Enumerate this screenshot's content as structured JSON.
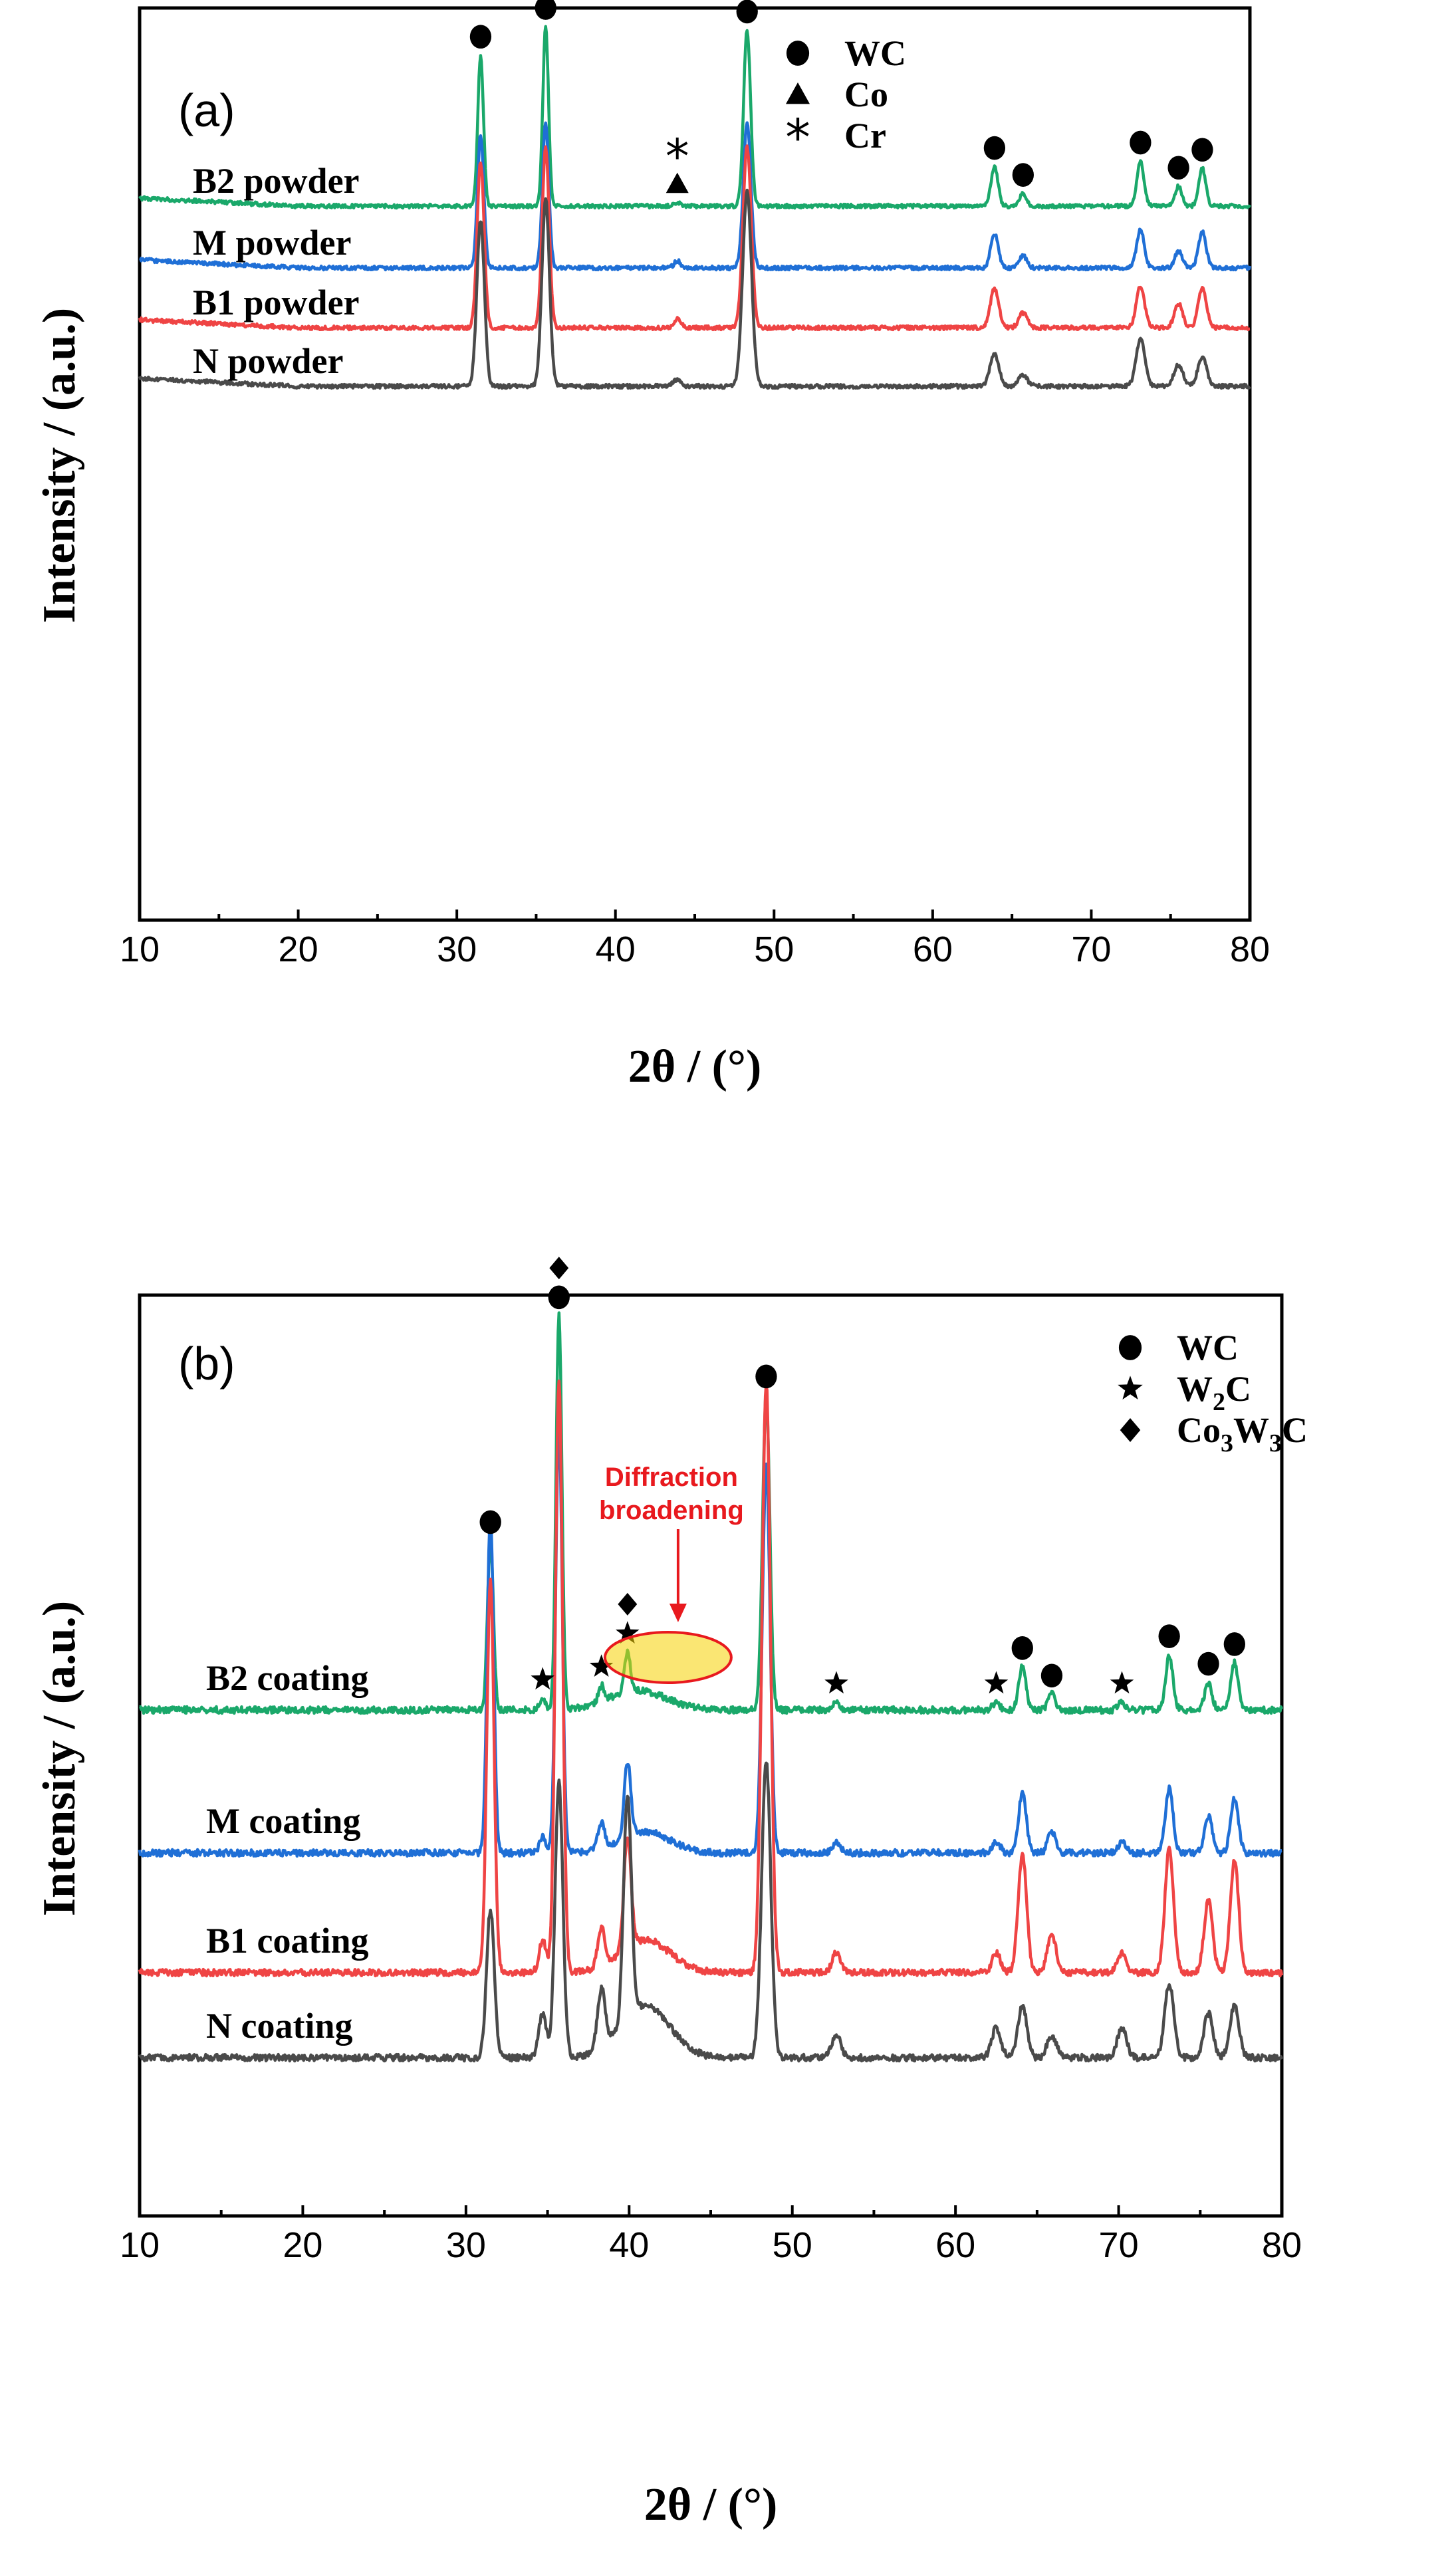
{
  "chart_data": [
    {
      "type": "line",
      "panel": "(a)",
      "xlabel": "2θ / (°)",
      "ylabel": "Intensity / (a.u.)",
      "xlim": [
        10,
        80
      ],
      "xticks": [
        10,
        20,
        30,
        40,
        50,
        60,
        70,
        80
      ],
      "legend": [
        {
          "marker": "circle-marker",
          "label": "WC"
        },
        {
          "marker": "triangle-marker",
          "label": "Co"
        },
        {
          "marker": "asterisk-marker",
          "label": "Cr"
        }
      ],
      "legend_position": "top-right",
      "series": [
        {
          "name": "B2 powder",
          "color": "#1aa86a",
          "peaks": [
            {
              "x": 31.5,
              "h": 0.84
            },
            {
              "x": 35.6,
              "h": 1.0
            },
            {
              "x": 43.9,
              "h": 0.02
            },
            {
              "x": 48.3,
              "h": 0.98
            },
            {
              "x": 63.9,
              "h": 0.22
            },
            {
              "x": 65.7,
              "h": 0.07
            },
            {
              "x": 73.1,
              "h": 0.25
            },
            {
              "x": 75.5,
              "h": 0.11
            },
            {
              "x": 77.0,
              "h": 0.21
            }
          ]
        },
        {
          "name": "M powder",
          "color": "#1f6fd6",
          "peaks": [
            {
              "x": 31.5,
              "h": 0.55
            },
            {
              "x": 35.6,
              "h": 0.6
            },
            {
              "x": 43.9,
              "h": 0.03
            },
            {
              "x": 48.3,
              "h": 0.6
            },
            {
              "x": 63.9,
              "h": 0.14
            },
            {
              "x": 65.7,
              "h": 0.05
            },
            {
              "x": 73.1,
              "h": 0.16
            },
            {
              "x": 75.5,
              "h": 0.07
            },
            {
              "x": 77.0,
              "h": 0.15
            }
          ]
        },
        {
          "name": "B1 powder",
          "color": "#ef4444",
          "peaks": [
            {
              "x": 31.5,
              "h": 0.55
            },
            {
              "x": 35.6,
              "h": 0.6
            },
            {
              "x": 43.9,
              "h": 0.03
            },
            {
              "x": 48.3,
              "h": 0.6
            },
            {
              "x": 63.9,
              "h": 0.13
            },
            {
              "x": 65.7,
              "h": 0.05
            },
            {
              "x": 73.1,
              "h": 0.14
            },
            {
              "x": 75.5,
              "h": 0.08
            },
            {
              "x": 77.0,
              "h": 0.13
            }
          ]
        },
        {
          "name": "N powder",
          "color": "#4a4a4a",
          "peaks": [
            {
              "x": 31.5,
              "h": 0.46
            },
            {
              "x": 35.6,
              "h": 0.52
            },
            {
              "x": 43.9,
              "h": 0.02
            },
            {
              "x": 48.3,
              "h": 0.54
            },
            {
              "x": 63.9,
              "h": 0.09
            },
            {
              "x": 65.7,
              "h": 0.03
            },
            {
              "x": 73.1,
              "h": 0.13
            },
            {
              "x": 75.5,
              "h": 0.06
            },
            {
              "x": 77.0,
              "h": 0.08
            }
          ]
        }
      ],
      "peak_markers": [
        {
          "x": 31.5,
          "marker": "circle-marker"
        },
        {
          "x": 35.6,
          "marker": "circle-marker"
        },
        {
          "x": 43.9,
          "marker": "triangle-marker"
        },
        {
          "x": 43.9,
          "marker": "asterisk-marker"
        },
        {
          "x": 48.3,
          "marker": "circle-marker"
        },
        {
          "x": 63.9,
          "marker": "circle-marker"
        },
        {
          "x": 65.7,
          "marker": "circle-marker"
        },
        {
          "x": 73.1,
          "marker": "circle-marker"
        },
        {
          "x": 75.5,
          "marker": "circle-marker"
        },
        {
          "x": 77.0,
          "marker": "circle-marker"
        }
      ]
    },
    {
      "type": "line",
      "panel": "(b)",
      "xlabel": "2θ / (°)",
      "ylabel": "Intensity / (a.u.)",
      "xlim": [
        10,
        80
      ],
      "xticks": [
        10,
        20,
        30,
        40,
        50,
        60,
        70,
        80
      ],
      "legend": [
        {
          "marker": "circle-marker",
          "label": "WC"
        },
        {
          "marker": "star-marker",
          "label": "W",
          "sub": "2",
          "tail": "C"
        },
        {
          "marker": "diamond-marker",
          "label": "Co",
          "sub": "3",
          "mid": "W",
          "sub2": "3",
          "tail": "C"
        }
      ],
      "legend_position": "top-right",
      "annotation": {
        "text_line1": "Diffraction",
        "text_line2": "broadening",
        "x": 43.0,
        "color": "#e8191e"
      },
      "series": [
        {
          "name": "B2 coating",
          "color": "#1aa86a",
          "peaks": [
            {
              "x": 31.5,
              "h": 0.43
            },
            {
              "x": 34.7,
              "h": 0.03
            },
            {
              "x": 35.7,
              "h": 1.0
            },
            {
              "x": 38.3,
              "h": 0.04
            },
            {
              "x": 39.9,
              "h": 0.1
            },
            {
              "x": 48.4,
              "h": 0.8
            },
            {
              "x": 52.7,
              "h": 0.02
            },
            {
              "x": 62.5,
              "h": 0.02
            },
            {
              "x": 64.1,
              "h": 0.11
            },
            {
              "x": 65.9,
              "h": 0.04
            },
            {
              "x": 70.2,
              "h": 0.02
            },
            {
              "x": 73.1,
              "h": 0.14
            },
            {
              "x": 75.5,
              "h": 0.07
            },
            {
              "x": 77.1,
              "h": 0.12
            }
          ],
          "broad": [
            {
              "x": 40.5,
              "h": 0.05,
              "w": 3.5
            }
          ]
        },
        {
          "name": "M coating",
          "color": "#1f6fd6",
          "peaks": [
            {
              "x": 31.5,
              "h": 0.63
            },
            {
              "x": 34.7,
              "h": 0.03
            },
            {
              "x": 35.7,
              "h": 0.8
            },
            {
              "x": 38.3,
              "h": 0.05
            },
            {
              "x": 39.9,
              "h": 0.14
            },
            {
              "x": 48.4,
              "h": 0.72
            },
            {
              "x": 52.7,
              "h": 0.02
            },
            {
              "x": 62.5,
              "h": 0.02
            },
            {
              "x": 64.1,
              "h": 0.11
            },
            {
              "x": 65.9,
              "h": 0.04
            },
            {
              "x": 70.2,
              "h": 0.02
            },
            {
              "x": 73.1,
              "h": 0.12
            },
            {
              "x": 75.5,
              "h": 0.07
            },
            {
              "x": 77.1,
              "h": 0.1
            }
          ],
          "broad": [
            {
              "x": 41.0,
              "h": 0.04,
              "w": 3.0
            }
          ]
        },
        {
          "name": "B1 coating",
          "color": "#ef4444",
          "peaks": [
            {
              "x": 31.5,
              "h": 0.6
            },
            {
              "x": 34.7,
              "h": 0.05
            },
            {
              "x": 35.7,
              "h": 0.9
            },
            {
              "x": 38.3,
              "h": 0.06
            },
            {
              "x": 39.9,
              "h": 0.17
            },
            {
              "x": 48.4,
              "h": 0.9
            },
            {
              "x": 52.7,
              "h": 0.03
            },
            {
              "x": 62.5,
              "h": 0.03
            },
            {
              "x": 64.1,
              "h": 0.18
            },
            {
              "x": 65.9,
              "h": 0.06
            },
            {
              "x": 70.2,
              "h": 0.03
            },
            {
              "x": 73.1,
              "h": 0.19
            },
            {
              "x": 75.5,
              "h": 0.11
            },
            {
              "x": 77.1,
              "h": 0.17
            }
          ],
          "broad": [
            {
              "x": 41.0,
              "h": 0.05,
              "w": 3.0
            }
          ]
        },
        {
          "name": "N coating",
          "color": "#4a4a4a",
          "peaks": [
            {
              "x": 31.5,
              "h": 0.2
            },
            {
              "x": 34.7,
              "h": 0.06
            },
            {
              "x": 35.7,
              "h": 0.37
            },
            {
              "x": 38.3,
              "h": 0.08
            },
            {
              "x": 39.9,
              "h": 0.3
            },
            {
              "x": 48.4,
              "h": 0.4
            },
            {
              "x": 52.7,
              "h": 0.03
            },
            {
              "x": 62.5,
              "h": 0.04
            },
            {
              "x": 64.1,
              "h": 0.07
            },
            {
              "x": 65.9,
              "h": 0.03
            },
            {
              "x": 70.2,
              "h": 0.04
            },
            {
              "x": 73.1,
              "h": 0.1
            },
            {
              "x": 75.5,
              "h": 0.06
            },
            {
              "x": 77.1,
              "h": 0.07
            }
          ],
          "broad": [
            {
              "x": 41.0,
              "h": 0.07,
              "w": 3.0
            }
          ]
        }
      ],
      "peak_markers": [
        {
          "x": 31.5,
          "marker": "circle-marker"
        },
        {
          "x": 34.7,
          "marker": "star-marker"
        },
        {
          "x": 35.7,
          "marker": "circle-marker"
        },
        {
          "x": 35.7,
          "marker": "diamond-marker"
        },
        {
          "x": 38.3,
          "marker": "star-marker"
        },
        {
          "x": 39.9,
          "marker": "star-marker"
        },
        {
          "x": 39.9,
          "marker": "diamond-marker"
        },
        {
          "x": 48.4,
          "marker": "circle-marker"
        },
        {
          "x": 52.7,
          "marker": "star-marker"
        },
        {
          "x": 62.5,
          "marker": "star-marker"
        },
        {
          "x": 64.1,
          "marker": "circle-marker"
        },
        {
          "x": 65.9,
          "marker": "circle-marker"
        },
        {
          "x": 70.2,
          "marker": "star-marker"
        },
        {
          "x": 73.1,
          "marker": "circle-marker"
        },
        {
          "x": 75.5,
          "marker": "circle-marker"
        },
        {
          "x": 77.1,
          "marker": "circle-marker"
        }
      ]
    }
  ]
}
